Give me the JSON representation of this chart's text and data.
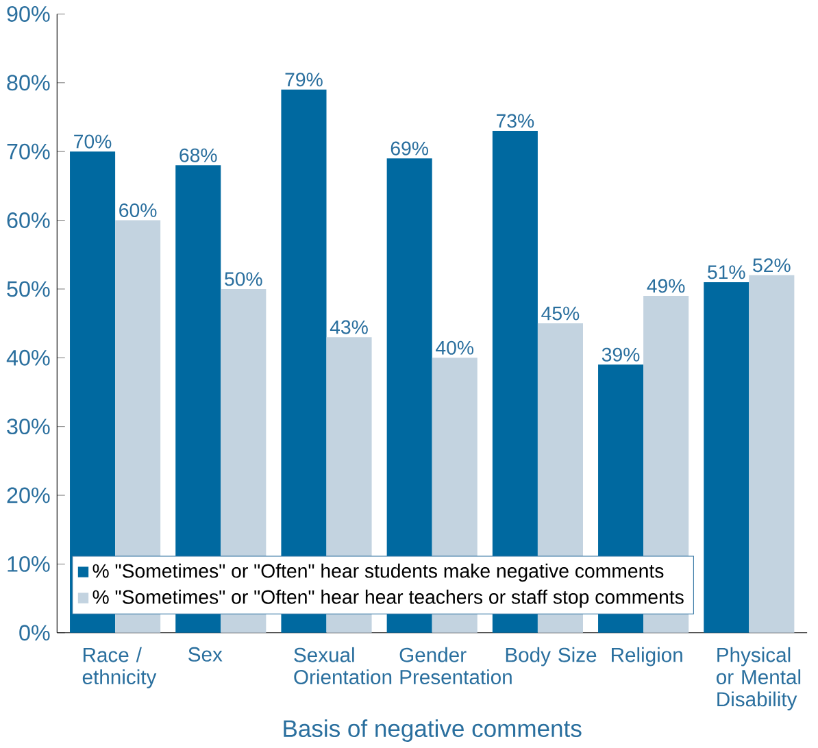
{
  "chart_data": {
    "type": "bar",
    "xlabel": "Basis of negative comments",
    "categories": [
      "Race / ethnicity",
      "Sex",
      "Sexual Orientation",
      "Gender Presentation",
      "Body Size",
      "Religion",
      "Physical or Mental Disability"
    ],
    "series": [
      {
        "name": "% \"Sometimes\" or \"Often\" hear students make negative comments",
        "color": "#0069a0",
        "values": [
          70,
          68,
          79,
          69,
          73,
          39,
          51
        ],
        "value_labels": [
          "70%",
          "68%",
          "79%",
          "69%",
          "73%",
          "39%",
          "51%"
        ]
      },
      {
        "name": "% \"Sometimes\" or \"Often\" hear hear teachers or staff stop comments",
        "color": "#c3d3e0",
        "values": [
          60,
          50,
          43,
          40,
          45,
          49,
          52
        ],
        "value_labels": [
          "60%",
          "50%",
          "43%",
          "40%",
          "45%",
          "49%",
          "52%"
        ]
      }
    ],
    "ylim": [
      0,
      90
    ],
    "yticks": [
      {
        "value": 0,
        "label": "0%"
      },
      {
        "value": 10,
        "label": "10%"
      },
      {
        "value": 20,
        "label": "20%"
      },
      {
        "value": 30,
        "label": "30%"
      },
      {
        "value": 40,
        "label": "40%"
      },
      {
        "value": 50,
        "label": "50%"
      },
      {
        "value": 60,
        "label": "60%"
      },
      {
        "value": 70,
        "label": "70%"
      },
      {
        "value": 80,
        "label": "80%"
      },
      {
        "value": 90,
        "label": "90%"
      }
    ],
    "legend": "bottom left",
    "grid": false
  }
}
